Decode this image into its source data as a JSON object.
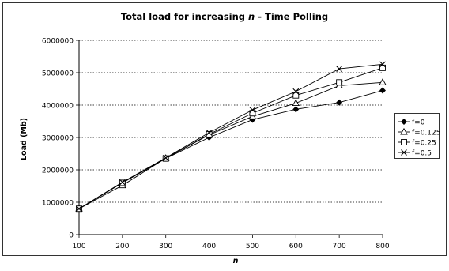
{
  "chart_data": {
    "type": "line",
    "title_prefix": "Total load for increasing ",
    "title_var": "n",
    "title_suffix": " - Time Polling",
    "xlabel": "n",
    "ylabel": "Load (Mb)",
    "x": [
      100,
      200,
      300,
      400,
      500,
      600,
      700,
      800
    ],
    "xlim": [
      100,
      800
    ],
    "ylim": [
      0,
      6000000
    ],
    "xticks": [
      "100",
      "200",
      "300",
      "400",
      "500",
      "600",
      "700",
      "800"
    ],
    "yticks": [
      "0",
      "1000000",
      "2000000",
      "3000000",
      "4000000",
      "5000000",
      "6000000"
    ],
    "grid": "horizontal dotted",
    "legend_position": "right",
    "series": [
      {
        "name": "f=0",
        "marker": "diamond",
        "values": [
          800000,
          1600000,
          2350000,
          3000000,
          3550000,
          3870000,
          4080000,
          4450000
        ]
      },
      {
        "name": "f=0.125",
        "marker": "triangle",
        "values": [
          800000,
          1520000,
          2360000,
          3080000,
          3650000,
          4060000,
          4600000,
          4700000
        ]
      },
      {
        "name": "f=0.25",
        "marker": "square",
        "values": [
          800000,
          1600000,
          2350000,
          3100000,
          3750000,
          4300000,
          4700000,
          5150000
        ]
      },
      {
        "name": "f=0.5",
        "marker": "x",
        "values": [
          800000,
          1620000,
          2370000,
          3150000,
          3850000,
          4420000,
          5120000,
          5260000
        ]
      }
    ]
  }
}
